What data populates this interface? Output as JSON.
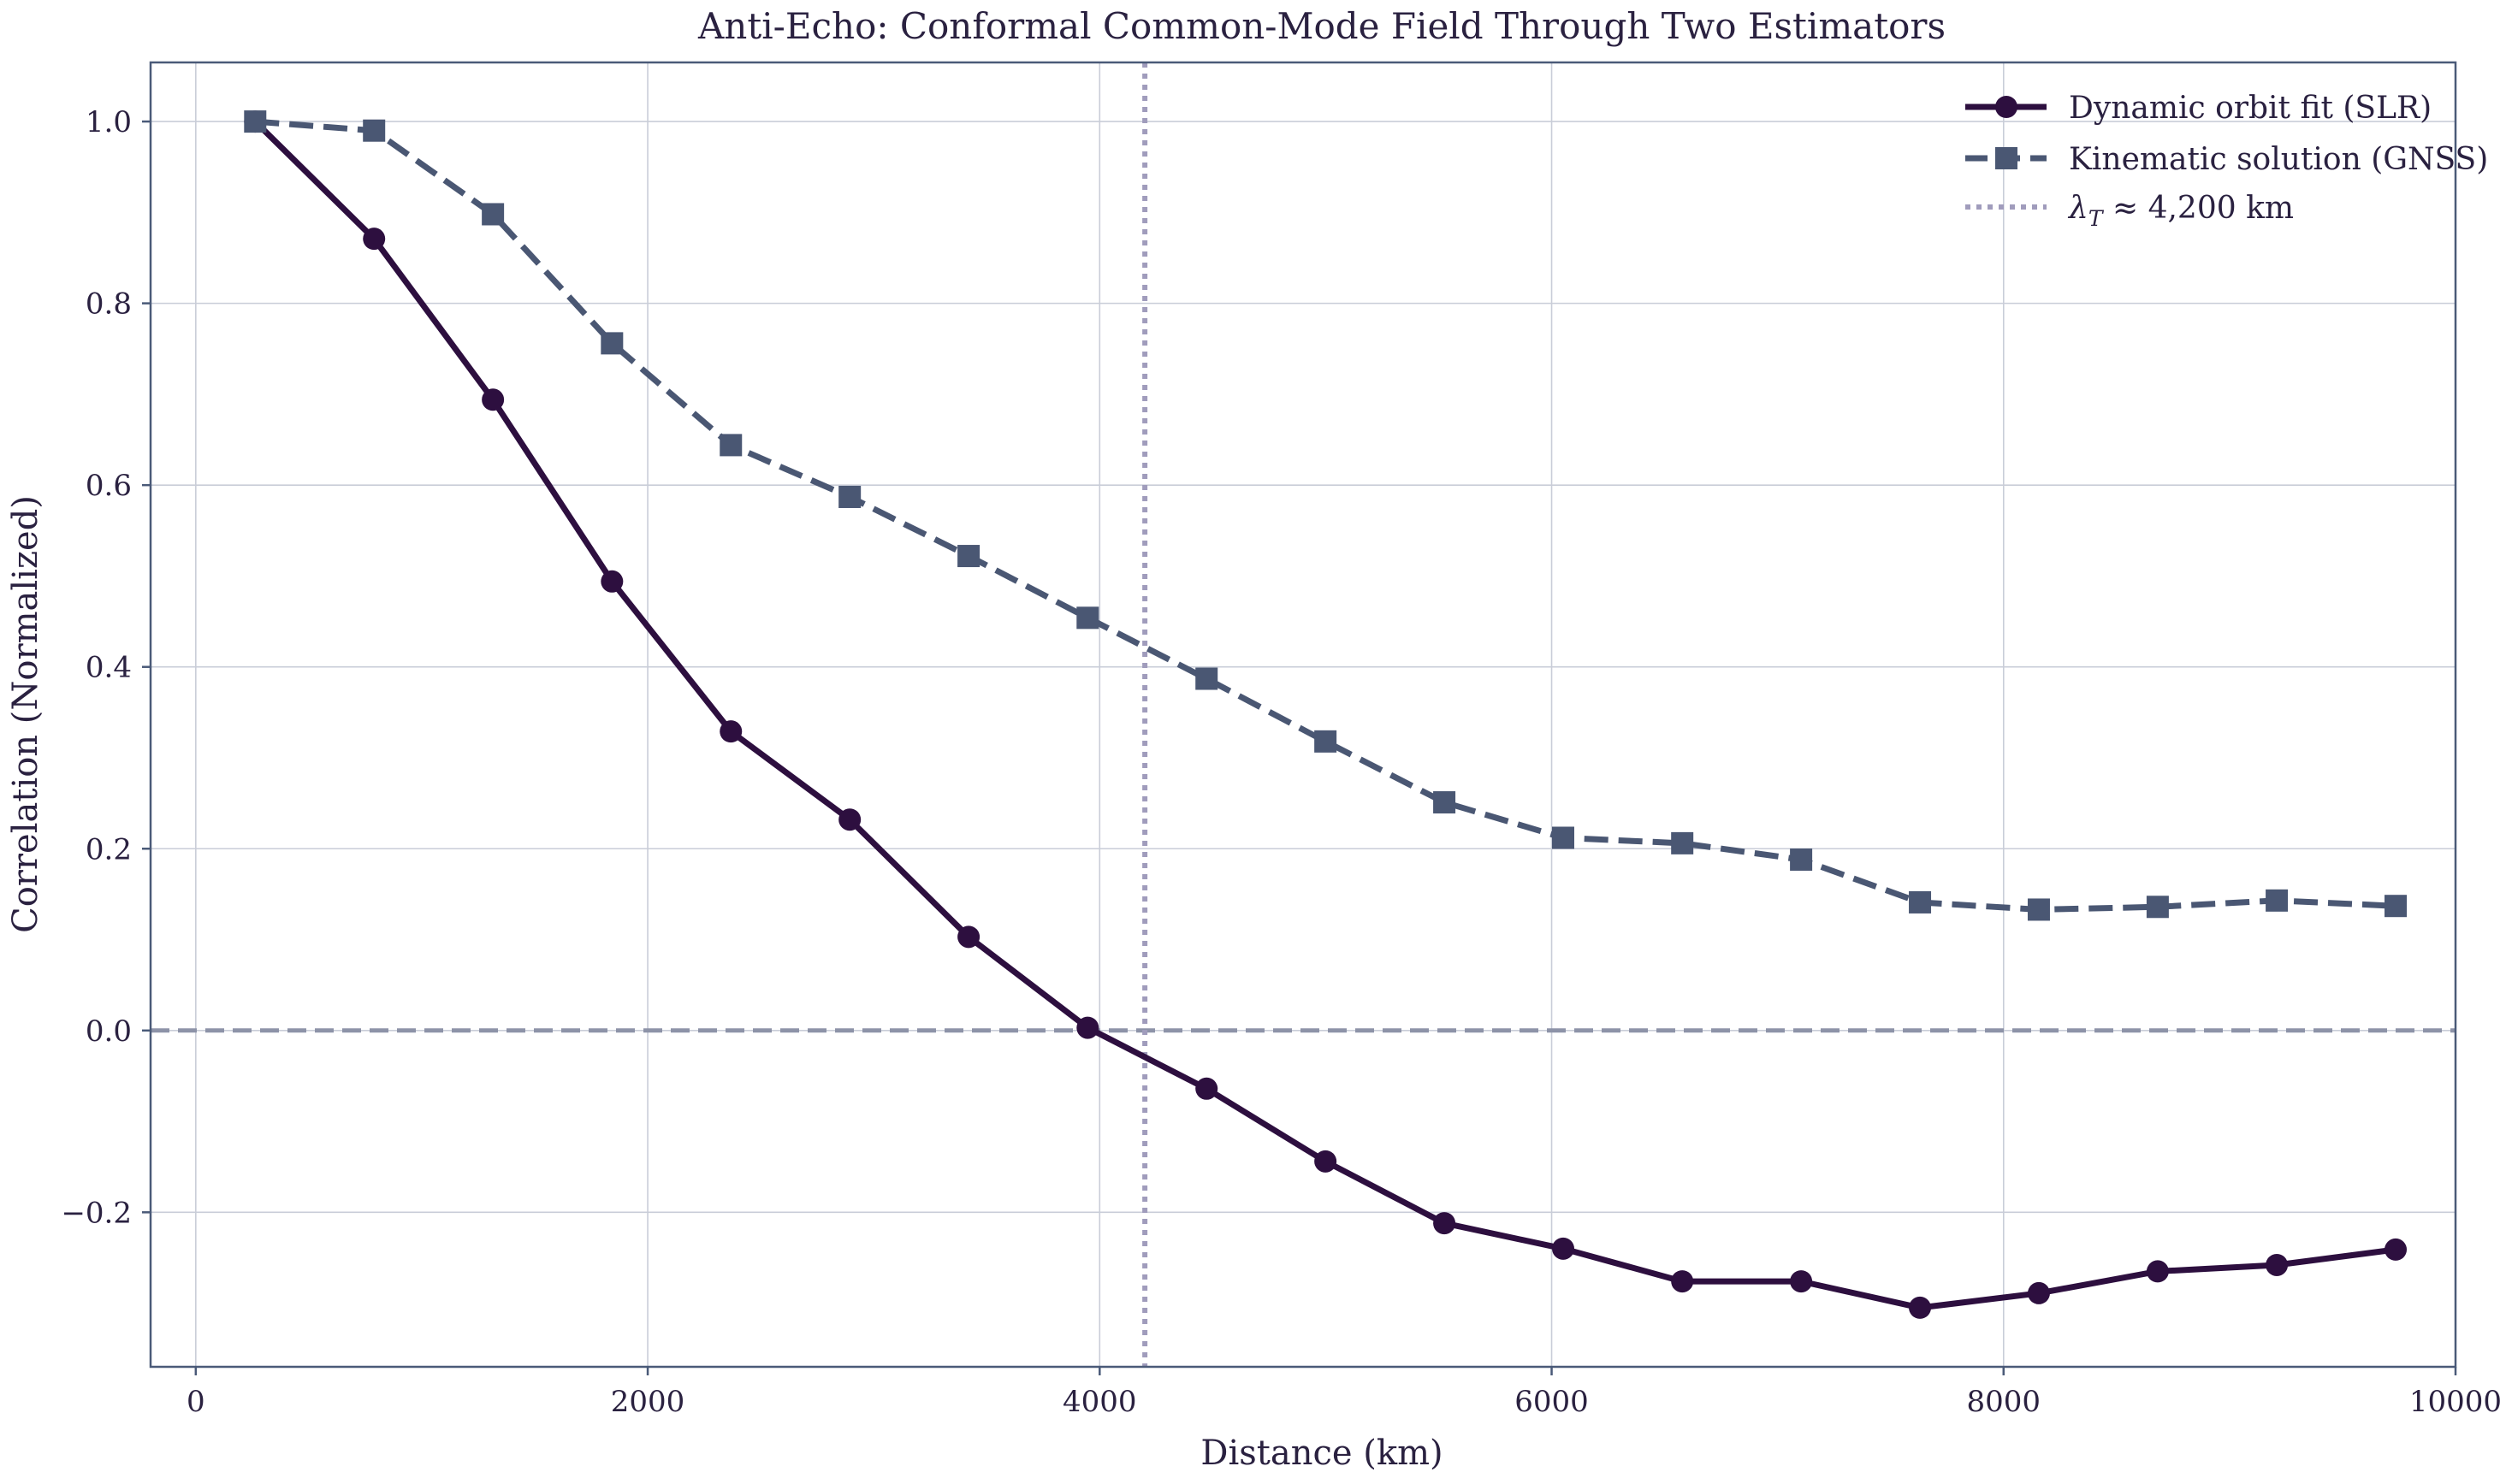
{
  "chart_data": {
    "type": "line",
    "title": "Anti-Echo: Conformal Common-Mode Field Through Two Estimators",
    "xlabel": "Distance (km)",
    "ylabel": "Correlation (Normalized)",
    "xlim": [
      -200,
      10000
    ],
    "ylim": [
      -0.37,
      1.065
    ],
    "xticks": [
      0,
      2000,
      4000,
      6000,
      8000,
      10000
    ],
    "xtick_labels": [
      "0",
      "2000",
      "4000",
      "6000",
      "8000",
      "10000"
    ],
    "yticks": [
      -0.2,
      0.0,
      0.2,
      0.4,
      0.6,
      0.8,
      1.0
    ],
    "ytick_labels": [
      "−0.2",
      "0.0",
      "0.2",
      "0.4",
      "0.6",
      "0.8",
      "1.0"
    ],
    "grid": true,
    "legend_position": "top-right",
    "x": [
      263,
      789,
      1315,
      1842,
      2368,
      2894,
      3420,
      3947,
      4473,
      4999,
      5525,
      6051,
      6578,
      7104,
      7630,
      8156,
      8682,
      9209,
      9735
    ],
    "series": [
      {
        "name": "Dynamic orbit fit (SLR)",
        "color": "#2d0f3f",
        "line_style": "solid",
        "marker": "circle",
        "values": [
          1.0,
          0.871,
          0.694,
          0.494,
          0.329,
          0.232,
          0.103,
          0.003,
          -0.064,
          -0.144,
          -0.212,
          -0.24,
          -0.276,
          -0.276,
          -0.305,
          -0.289,
          -0.265,
          -0.258,
          -0.241
        ]
      },
      {
        "name": "Kinematic solution (GNSS)",
        "color": "#4a5773",
        "line_style": "dashed",
        "marker": "square",
        "values": [
          1.0,
          0.99,
          0.898,
          0.756,
          0.644,
          0.587,
          0.522,
          0.454,
          0.387,
          0.318,
          0.251,
          0.212,
          0.206,
          0.188,
          0.141,
          0.133,
          0.136,
          0.143,
          0.137
        ]
      }
    ],
    "reference_lines": [
      {
        "orientation": "horizontal",
        "value": 0.0,
        "style": "dashed",
        "color": "#8d93a8"
      },
      {
        "orientation": "vertical",
        "value": 4200,
        "style": "dotted",
        "color": "#a09cbc",
        "label": "λ_T ≈ 4,200 km"
      }
    ],
    "legend": {
      "entries": [
        "Dynamic orbit fit (SLR)",
        "Kinematic solution (GNSS)",
        "λ_T ≈ 4,200 km"
      ],
      "lambda_symbol": "λ",
      "lambda_subscript": "T",
      "lambda_rest": " ≈ 4,200 km"
    }
  }
}
